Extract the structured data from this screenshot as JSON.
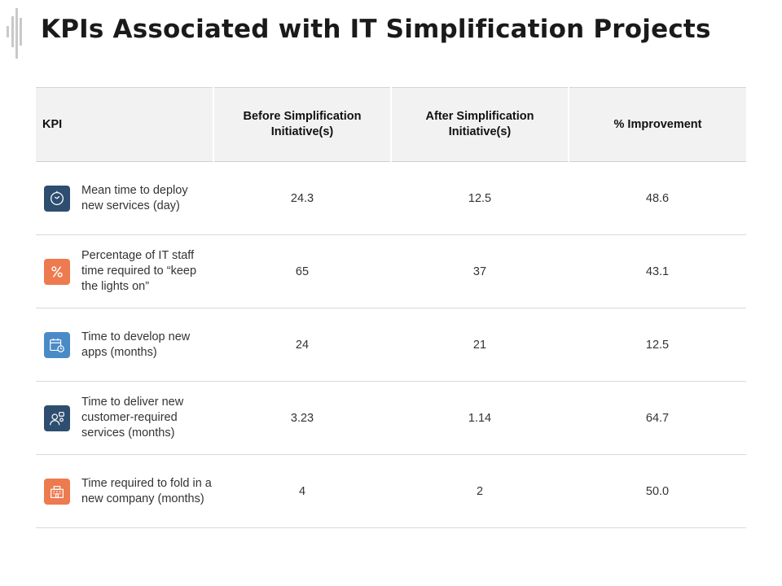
{
  "title": "KPIs Associated with IT Simplification Projects",
  "colors": {
    "navy": "#2e4e6f",
    "orange": "#ee7a4f",
    "blue": "#4a8ac6",
    "header_bg": "#f2f2f2"
  },
  "table": {
    "headers": {
      "kpi": "KPI",
      "before": "Before Simplification Initiative(s)",
      "after": "After Simplification Initiative(s)",
      "improvement": "% Improvement"
    },
    "rows": [
      {
        "icon": "clock-icon",
        "label": "Mean time to deploy new services (day)",
        "before": "24.3",
        "after": "12.5",
        "improvement": "48.6"
      },
      {
        "icon": "percent-icon",
        "label": "Percentage of IT staff time required to “keep the lights on”",
        "before": "65",
        "after": "37",
        "improvement": "43.1"
      },
      {
        "icon": "calendar-clock-icon",
        "label": "Time to develop new apps (months)",
        "before": "24",
        "after": "21",
        "improvement": "12.5"
      },
      {
        "icon": "customer-service-icon",
        "label": "Time to deliver new customer-required services (months)",
        "before": "3.23",
        "after": "1.14",
        "improvement": "64.7"
      },
      {
        "icon": "company-building-icon",
        "label": "Time required to fold in a new company (months)",
        "before": "4",
        "after": "2",
        "improvement": "50.0"
      }
    ]
  }
}
